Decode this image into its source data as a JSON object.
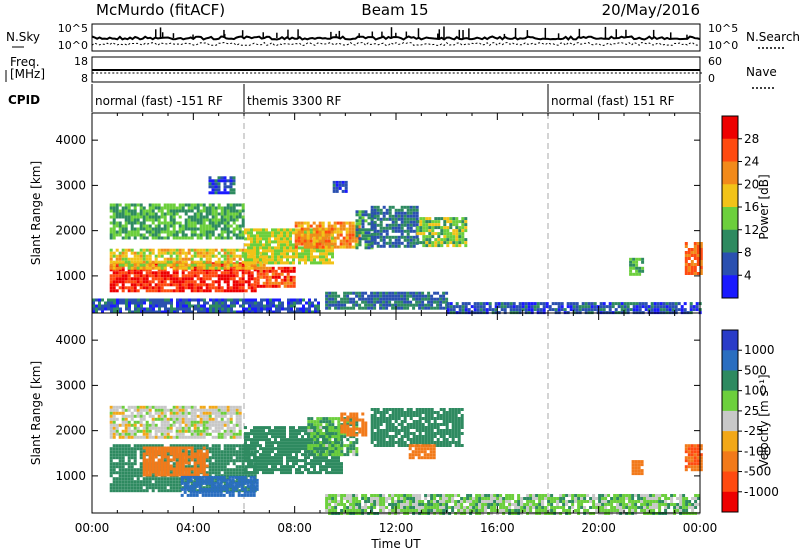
{
  "header": {
    "station": "McMurdo (fitACF)",
    "beam": "Beam 15",
    "date": "20/May/2016"
  },
  "nsky_panel": {
    "left_label": "N.Sky",
    "right_label": "N.Search",
    "left_ticks": [
      "10^5",
      "10^0"
    ],
    "right_ticks": [
      "10^5",
      "10^0"
    ]
  },
  "freq_panel": {
    "left_label_line1": "Freq.",
    "left_label_line2": "[MHz]",
    "right_label": "Nave",
    "left_ticks": [
      "18",
      "8"
    ],
    "right_ticks": [
      "60",
      "0"
    ]
  },
  "cpid": {
    "label": "CPID",
    "segments": [
      {
        "start_hour": 0.0,
        "end_hour": 6.0,
        "text": "normal (fast) -151 RF"
      },
      {
        "start_hour": 6.0,
        "end_hour": 18.0,
        "text": "themis 3300 RF"
      },
      {
        "start_hour": 18.0,
        "end_hour": 24.0,
        "text": "normal (fast) 151 RF"
      }
    ]
  },
  "x_axis": {
    "label": "Time UT",
    "ticks": [
      "00:00",
      "04:00",
      "08:00",
      "12:00",
      "16:00",
      "20:00",
      "00:00"
    ],
    "tick_hours": [
      0,
      4,
      8,
      12,
      16,
      20,
      24
    ]
  },
  "chart_data": [
    {
      "type": "heatmap",
      "name": "Power",
      "ylabel": "Slant Range [km]",
      "xlabel": "",
      "ylim": [
        180,
        4600
      ],
      "xlim": [
        0,
        24
      ],
      "yticks": [
        "1000",
        "2000",
        "3000",
        "4000"
      ],
      "ytick_values": [
        1000,
        2000,
        3000,
        4000
      ],
      "colorbar": {
        "label": "Power [dB]",
        "ticks": [
          "4",
          "8",
          "12",
          "16",
          "20",
          "24",
          "28"
        ],
        "tick_values": [
          4,
          8,
          12,
          16,
          20,
          24,
          28
        ],
        "range": [
          0,
          30
        ],
        "colors": [
          "#1a1aff",
          "#2a50b0",
          "#2e8a60",
          "#6ccf3c",
          "#f2c318",
          "#f28a1a",
          "#ff4a10",
          "#ee0000"
        ]
      },
      "regions": [
        {
          "t0": 0.7,
          "t1": 6.5,
          "r0": 680,
          "r1": 1300,
          "value": 28
        },
        {
          "t0": 6.5,
          "t1": 8.0,
          "r0": 750,
          "r1": 1200,
          "value": 26
        },
        {
          "t0": 0.7,
          "t1": 6.8,
          "r0": 1150,
          "r1": 1600,
          "value": 18
        },
        {
          "t0": 0.7,
          "t1": 6.0,
          "r0": 1850,
          "r1": 2600,
          "value": 12
        },
        {
          "t0": 6.0,
          "t1": 9.5,
          "r0": 1300,
          "r1": 2050,
          "value": 16
        },
        {
          "t0": 8.0,
          "t1": 10.5,
          "r0": 1650,
          "r1": 2200,
          "value": 22
        },
        {
          "t0": 10.4,
          "t1": 11.2,
          "r0": 1600,
          "r1": 2450,
          "value": 10
        },
        {
          "t0": 11.0,
          "t1": 12.8,
          "r0": 1650,
          "r1": 2550,
          "value": 8
        },
        {
          "t0": 12.8,
          "t1": 14.7,
          "r0": 1650,
          "r1": 2300,
          "value": 14
        },
        {
          "t0": 9.2,
          "t1": 14.0,
          "r0": 280,
          "r1": 650,
          "value": 8
        },
        {
          "t0": 14.0,
          "t1": 24.0,
          "r0": 180,
          "r1": 420,
          "value": 6
        },
        {
          "t0": 0.0,
          "t1": 9.0,
          "r0": 180,
          "r1": 500,
          "value": 6
        },
        {
          "t0": 21.2,
          "t1": 21.7,
          "r0": 1050,
          "r1": 1400,
          "value": 12
        },
        {
          "t0": 23.4,
          "t1": 24.0,
          "r0": 1050,
          "r1": 1750,
          "value": 24
        },
        {
          "t0": 4.6,
          "t1": 5.6,
          "r0": 2850,
          "r1": 3200,
          "value": 6
        },
        {
          "t0": 9.5,
          "t1": 10.0,
          "r0": 2900,
          "r1": 3100,
          "value": 6
        }
      ]
    },
    {
      "type": "heatmap",
      "name": "Velocity",
      "ylabel": "Slant Range [km]",
      "xlabel": "Time UT",
      "ylim": [
        180,
        4600
      ],
      "xlim": [
        0,
        24
      ],
      "yticks": [
        "1000",
        "2000",
        "3000",
        "4000"
      ],
      "ytick_values": [
        1000,
        2000,
        3000,
        4000
      ],
      "colorbar": {
        "label": "Velocity [m s⁻¹]",
        "ticks": [
          "1000",
          "500",
          "100",
          "25",
          "-25",
          "-100",
          "-500",
          "-1000"
        ],
        "tick_values": [
          1000,
          500,
          100,
          25,
          -25,
          -100,
          -500,
          -1000
        ],
        "colors": [
          "#2a3cc8",
          "#2a6ec0",
          "#2e8a60",
          "#6ccf3c",
          "#c8c8c8",
          "#f2a818",
          "#f27a1a",
          "#ff4a10",
          "#ee0000"
        ]
      },
      "regions": [
        {
          "t0": 0.7,
          "t1": 6.5,
          "r0": 650,
          "r1": 1700,
          "value": 200
        },
        {
          "t0": 2.0,
          "t1": 4.5,
          "r0": 1000,
          "r1": 1650,
          "value": -150
        },
        {
          "t0": 3.5,
          "t1": 6.5,
          "r0": 600,
          "r1": 1000,
          "value": 600
        },
        {
          "t0": 0.7,
          "t1": 5.8,
          "r0": 1850,
          "r1": 2550,
          "value": 0
        },
        {
          "t0": 6.0,
          "t1": 9.8,
          "r0": 1100,
          "r1": 2100,
          "value": 200
        },
        {
          "t0": 8.5,
          "t1": 10.5,
          "r0": 1500,
          "r1": 2300,
          "value": 60
        },
        {
          "t0": 9.8,
          "t1": 10.8,
          "r0": 1900,
          "r1": 2400,
          "value": -150
        },
        {
          "t0": 11.0,
          "t1": 14.6,
          "r0": 1700,
          "r1": 2500,
          "value": 200
        },
        {
          "t0": 12.5,
          "t1": 13.5,
          "r0": 1400,
          "r1": 1700,
          "value": -120
        },
        {
          "t0": 9.2,
          "t1": 24.0,
          "r0": 180,
          "r1": 600,
          "value": 40
        },
        {
          "t0": 21.3,
          "t1": 21.7,
          "r0": 1050,
          "r1": 1350,
          "value": -200
        },
        {
          "t0": 23.4,
          "t1": 24.0,
          "r0": 1150,
          "r1": 1700,
          "value": -300
        }
      ]
    }
  ]
}
